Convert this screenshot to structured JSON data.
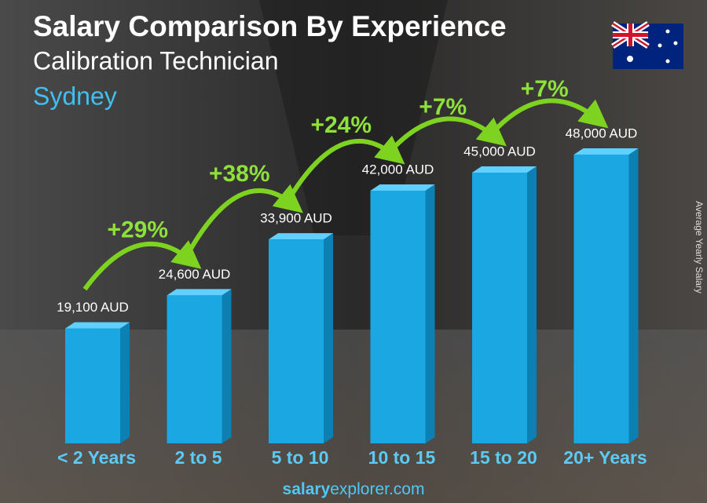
{
  "chart_data": {
    "type": "bar",
    "title": "Salary Comparison By Experience",
    "subtitle": "Calibration Technician",
    "location": "Sydney",
    "axis_label": "Average Yearly Salary",
    "categories": [
      "< 2 Years",
      "2 to 5",
      "5 to 10",
      "10 to 15",
      "15 to 20",
      "20+ Years"
    ],
    "values": [
      19100,
      24600,
      33900,
      42000,
      45000,
      48000
    ],
    "value_labels": [
      "19,100 AUD",
      "24,600 AUD",
      "33,900 AUD",
      "42,000 AUD",
      "45,000 AUD",
      "48,000 AUD"
    ],
    "changes": [
      "+29%",
      "+38%",
      "+24%",
      "+7%",
      "+7%"
    ],
    "color": "#1ba8e2",
    "footer": {
      "bold": "salary",
      "rest": "explorer.com"
    }
  }
}
